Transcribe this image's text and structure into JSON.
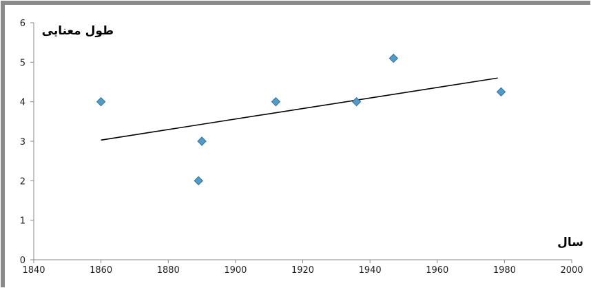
{
  "chart_data": {
    "type": "scatter",
    "title": "",
    "xlabel": "سال",
    "ylabel": "طول معنایی",
    "xlim": [
      1840,
      2000
    ],
    "ylim": [
      0,
      6
    ],
    "x_ticks": [
      "1840",
      "1860",
      "1880",
      "1900",
      "1920",
      "1940",
      "1960",
      "1980",
      "2000"
    ],
    "y_ticks": [
      "0",
      "1",
      "2",
      "3",
      "4",
      "5",
      "6"
    ],
    "grid": false,
    "legend": "none",
    "series": [
      {
        "marker": "diamond",
        "color": "#4f9bc9",
        "points": [
          {
            "x": 1860,
            "y": 4.0
          },
          {
            "x": 1889,
            "y": 2.0
          },
          {
            "x": 1890,
            "y": 3.0
          },
          {
            "x": 1912,
            "y": 4.0
          },
          {
            "x": 1936,
            "y": 4.0
          },
          {
            "x": 1947,
            "y": 5.1
          },
          {
            "x": 1979,
            "y": 4.25
          }
        ]
      }
    ],
    "trendline": {
      "type": "linear",
      "color": "#000000",
      "start": {
        "x": 1860,
        "y": 3.03
      },
      "end": {
        "x": 1978,
        "y": 4.6
      }
    }
  }
}
